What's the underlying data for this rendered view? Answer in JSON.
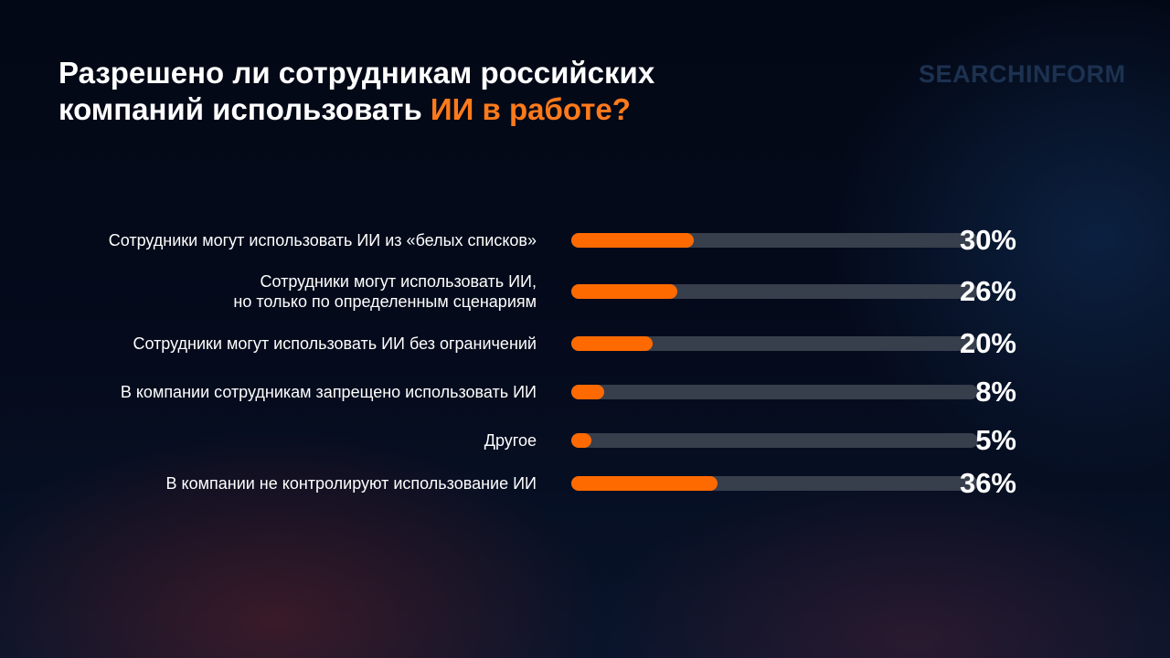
{
  "chart_data": {
    "type": "bar",
    "title": "Разрешено ли сотрудникам российских компаний использовать",
    "title_highlight": "ИИ в работе?",
    "logo": "SEARCHINFORM",
    "categories": [
      "Сотрудники могут использовать ИИ из «белых списков»",
      "Сотрудники могут использовать ИИ,\nно только по определенным сценариям",
      "Сотрудники могут использовать ИИ без ограничений",
      "В компании сотрудникам запрещено использовать ИИ",
      "Другое",
      "В компании не контролируют использование ИИ"
    ],
    "values": [
      30,
      26,
      20,
      8,
      5,
      36
    ],
    "value_labels": [
      "30%",
      "26%",
      "20%",
      "8%",
      "5%",
      "36%"
    ],
    "color": "#ff6a00",
    "xlim": [
      0,
      100
    ]
  }
}
